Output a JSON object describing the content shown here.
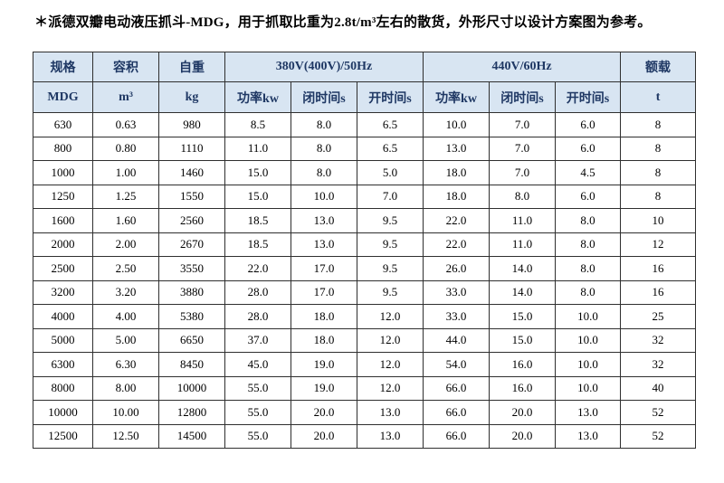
{
  "page": {
    "note": "＊派德双瓣电动液压抓斗-MDG，用于抓取比重为2.8t/m³左右的散货，外形尺寸以设计方案图为参考。"
  },
  "table": {
    "header_groups": {
      "spec": "规格",
      "volume": "容积",
      "weight": "自重",
      "hz50": "380V(400V)/50Hz",
      "hz60": "440V/60Hz",
      "rated": "额载"
    },
    "subheaders": {
      "spec": "MDG",
      "volume": "m³",
      "weight": "kg",
      "power50": "功率kw",
      "close50": "闭时间s",
      "open50": "开时间s",
      "power60": "功率kw",
      "close60": "闭时间s",
      "open60": "开时间s",
      "rated": "t"
    },
    "rows": [
      [
        "630",
        "0.63",
        "980",
        "8.5",
        "8.0",
        "6.5",
        "10.0",
        "7.0",
        "6.0",
        "8"
      ],
      [
        "800",
        "0.80",
        "1110",
        "11.0",
        "8.0",
        "6.5",
        "13.0",
        "7.0",
        "6.0",
        "8"
      ],
      [
        "1000",
        "1.00",
        "1460",
        "15.0",
        "8.0",
        "5.0",
        "18.0",
        "7.0",
        "4.5",
        "8"
      ],
      [
        "1250",
        "1.25",
        "1550",
        "15.0",
        "10.0",
        "7.0",
        "18.0",
        "8.0",
        "6.0",
        "8"
      ],
      [
        "1600",
        "1.60",
        "2560",
        "18.5",
        "13.0",
        "9.5",
        "22.0",
        "11.0",
        "8.0",
        "10"
      ],
      [
        "2000",
        "2.00",
        "2670",
        "18.5",
        "13.0",
        "9.5",
        "22.0",
        "11.0",
        "8.0",
        "12"
      ],
      [
        "2500",
        "2.50",
        "3550",
        "22.0",
        "17.0",
        "9.5",
        "26.0",
        "14.0",
        "8.0",
        "16"
      ],
      [
        "3200",
        "3.20",
        "3880",
        "28.0",
        "17.0",
        "9.5",
        "33.0",
        "14.0",
        "8.0",
        "16"
      ],
      [
        "4000",
        "4.00",
        "5380",
        "28.0",
        "18.0",
        "12.0",
        "33.0",
        "15.0",
        "10.0",
        "25"
      ],
      [
        "5000",
        "5.00",
        "6650",
        "37.0",
        "18.0",
        "12.0",
        "44.0",
        "15.0",
        "10.0",
        "32"
      ],
      [
        "6300",
        "6.30",
        "8450",
        "45.0",
        "19.0",
        "12.0",
        "54.0",
        "16.0",
        "10.0",
        "32"
      ],
      [
        "8000",
        "8.00",
        "10000",
        "55.0",
        "19.0",
        "12.0",
        "66.0",
        "16.0",
        "10.0",
        "40"
      ],
      [
        "10000",
        "10.00",
        "12800",
        "55.0",
        "20.0",
        "13.0",
        "66.0",
        "20.0",
        "13.0",
        "52"
      ],
      [
        "12500",
        "12.50",
        "14500",
        "55.0",
        "20.0",
        "13.0",
        "66.0",
        "20.0",
        "13.0",
        "52"
      ]
    ],
    "colors": {
      "header_bg": "#d8e5f2",
      "header_text": "#1f3864",
      "border": "#2f2f2f",
      "body_text": "#000000"
    }
  }
}
